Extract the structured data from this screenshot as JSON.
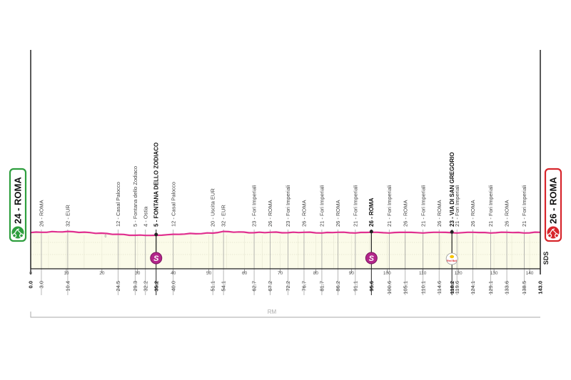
{
  "chart_data": {
    "type": "area",
    "xlabel": "",
    "ylabel": "",
    "xlim": [
      0,
      143
    ],
    "x_ticks": [
      0,
      10,
      20,
      30,
      40,
      50,
      60,
      70,
      80,
      90,
      100,
      110,
      120,
      130,
      140
    ],
    "start": {
      "altitude": "24",
      "name": "ROMA",
      "label": "24 - ROMA",
      "color": "#2e9e3e"
    },
    "finish": {
      "altitude": "26",
      "name": "ROMA",
      "label": "26 - ROMA",
      "color": "#d7262c"
    },
    "profile_color": "#e0308f",
    "fill_color": "#fbfbe9",
    "small_marker": "0",
    "waypoints": [
      {
        "km": 0.0,
        "km_label": "0.0",
        "alt": 24,
        "label": "",
        "bold": true
      },
      {
        "km": 3.0,
        "km_label": "3.0",
        "alt": 26,
        "label": "26 - ROMA",
        "bold": false
      },
      {
        "km": 10.4,
        "km_label": "10.4",
        "alt": 32,
        "label": "32 - EUR",
        "bold": false
      },
      {
        "km": 24.5,
        "km_label": "24.5",
        "alt": 12,
        "label": "12 - Casal Palocco",
        "bold": false
      },
      {
        "km": 29.3,
        "km_label": "29.3",
        "alt": 5,
        "label": "5 - Fontana dello Zodiaco",
        "bold": false
      },
      {
        "km": 32.2,
        "km_label": "32.2",
        "alt": 4,
        "label": "4 - Ostia",
        "bold": false
      },
      {
        "km": 35.2,
        "km_label": "35.2",
        "alt": 5,
        "label": "5 - FONTANA DELLO ZODIACO",
        "bold": true,
        "marker": "sprint"
      },
      {
        "km": 40.0,
        "km_label": "40.0",
        "alt": 12,
        "label": "12 - Casal Palocco",
        "bold": false
      },
      {
        "km": 51.1,
        "km_label": "51.1",
        "alt": 20,
        "label": "20 - Uscita EUR",
        "bold": false
      },
      {
        "km": 54.1,
        "km_label": "54.1",
        "alt": 32,
        "label": "32 - EUR",
        "bold": false
      },
      {
        "km": 62.7,
        "km_label": "62.7",
        "alt": 23,
        "label": "23 - Fori Imperiali",
        "bold": false
      },
      {
        "km": 67.2,
        "km_label": "67.2",
        "alt": 26,
        "label": "26 - ROMA",
        "bold": false
      },
      {
        "km": 72.2,
        "km_label": "72.2",
        "alt": 23,
        "label": "23 - Fori Imperiali",
        "bold": false
      },
      {
        "km": 76.7,
        "km_label": "76.7",
        "alt": 26,
        "label": "26 - ROMA",
        "bold": false
      },
      {
        "km": 81.7,
        "km_label": "81.7",
        "alt": 21,
        "label": "21 - Fori Imperiali",
        "bold": false
      },
      {
        "km": 86.2,
        "km_label": "86.2",
        "alt": 26,
        "label": "26 - ROMA",
        "bold": false
      },
      {
        "km": 91.1,
        "km_label": "91.1",
        "alt": 21,
        "label": "21 - Fori Imperiali",
        "bold": false
      },
      {
        "km": 95.6,
        "km_label": "95.6",
        "alt": 26,
        "label": "26 - ROMA",
        "bold": true,
        "marker": "sprint"
      },
      {
        "km": 100.6,
        "km_label": "100.6",
        "alt": 21,
        "label": "21 - Fori Imperiali",
        "bold": false
      },
      {
        "km": 105.1,
        "km_label": "105.1",
        "alt": 26,
        "label": "26 - ROMA",
        "bold": false
      },
      {
        "km": 110.1,
        "km_label": "110.1",
        "alt": 21,
        "label": "21 - Fori Imperiali",
        "bold": false
      },
      {
        "km": 114.6,
        "km_label": "114.6",
        "alt": 26,
        "label": "26 - ROMA",
        "bold": false
      },
      {
        "km": 118.2,
        "km_label": "118.2",
        "alt": 23,
        "label": "23 - VIA DI SAN GREGORIO",
        "bold": true,
        "marker": "redbull"
      },
      {
        "km": 119.6,
        "km_label": "119.6",
        "alt": 21,
        "label": "21 - Fori Imperiali",
        "bold": false
      },
      {
        "km": 124.1,
        "km_label": "124.1",
        "alt": 26,
        "label": "26 - ROMA",
        "bold": false
      },
      {
        "km": 129.1,
        "km_label": "129.1",
        "alt": 21,
        "label": "21 - Fori Imperiali",
        "bold": false
      },
      {
        "km": 133.6,
        "km_label": "133.6",
        "alt": 26,
        "label": "26 - ROMA",
        "bold": false
      },
      {
        "km": 138.5,
        "km_label": "138.5",
        "alt": 21,
        "label": "21 - Fori Imperiali",
        "bold": false
      },
      {
        "km": 143.0,
        "km_label": "143.0",
        "alt": 26,
        "label": "",
        "bold": true
      }
    ],
    "markers": {
      "sprint": "S",
      "redbull": "Red Bull"
    },
    "region_label": "RM",
    "sponsor": "SDS"
  }
}
